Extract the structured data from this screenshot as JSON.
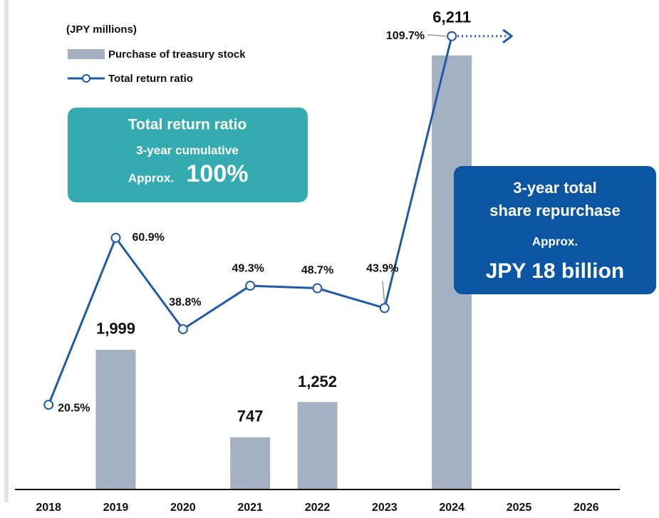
{
  "chart_data": {
    "type": "bar_line",
    "unit_label": "(JPY millions)",
    "categories": [
      "2018",
      "2019",
      "2020",
      "2021",
      "2022",
      "2023",
      "2024",
      "2025",
      "2026"
    ],
    "series": [
      {
        "name": "Purchase of treasury stock",
        "type": "bar",
        "color": "#a3b1c2",
        "values": [
          null,
          1999,
          null,
          747,
          1252,
          null,
          6211,
          null,
          null
        ],
        "value_labels": [
          null,
          "1,999",
          null,
          "747",
          "1,252",
          null,
          "6,211",
          null,
          null
        ]
      },
      {
        "name": "Total return ratio",
        "type": "line",
        "axis": "y2",
        "color": "#1f5aa6",
        "values": [
          20.5,
          60.9,
          38.8,
          49.3,
          48.7,
          43.9,
          109.7,
          null,
          null
        ],
        "value_labels": [
          "20.5%",
          "60.9%",
          "38.8%",
          "49.3%",
          "48.7%",
          "43.9%",
          "109.7%",
          null,
          null
        ]
      }
    ],
    "ylim": [
      0,
      6800
    ],
    "y2lim": [
      0,
      115
    ],
    "annotations": [
      {
        "lines": [
          "Total return ratio",
          "3-year cumulative",
          "Approx.",
          "100%"
        ],
        "color": "#34aab1"
      },
      {
        "lines": [
          "3-year total",
          "share repurchase",
          "Approx.",
          "JPY 18 billion"
        ],
        "color": "#0b55a3"
      }
    ]
  }
}
